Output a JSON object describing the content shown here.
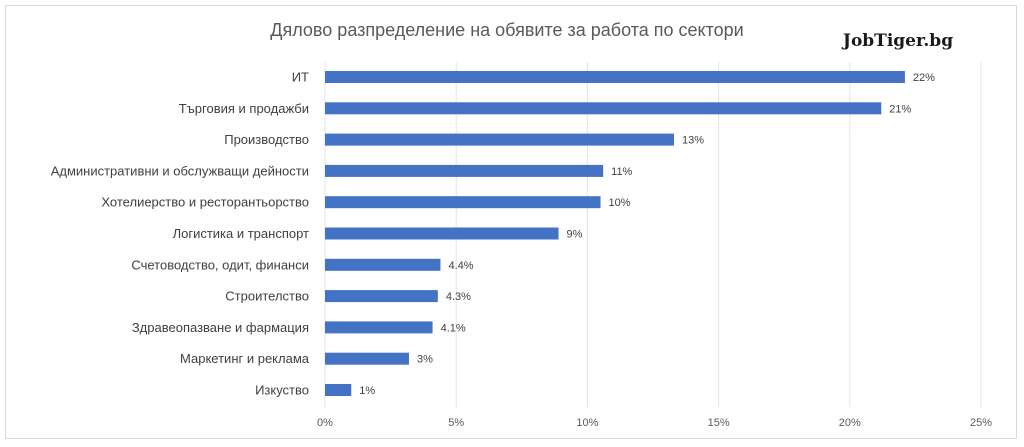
{
  "brand": "JobTiger.bg",
  "chart_data": {
    "type": "bar",
    "orientation": "horizontal",
    "title": "Дялово разпределение на обявите за работа по сектори",
    "categories": [
      "ИТ",
      "Търговия и продажби",
      "Производство",
      "Административни и обслужващи дейности",
      "Хотелиерство и ресторантьорство",
      "Логистика и транспорт",
      "Счетоводство, одит, финанси",
      "Строителство",
      "Здравеопазване и фармация",
      "Маркетинг и реклама",
      "Изкуство"
    ],
    "values": [
      22,
      21,
      13,
      11,
      10,
      9,
      4.4,
      4.3,
      4.1,
      3,
      1
    ],
    "bar_values": [
      22.1,
      21.2,
      13.3,
      10.6,
      10.5,
      8.9,
      4.4,
      4.3,
      4.1,
      3.2,
      1.0
    ],
    "data_labels": [
      "22%",
      "21%",
      "13%",
      "11%",
      "10%",
      "9%",
      "4.4%",
      "4.3%",
      "4.1%",
      "3%",
      "1%"
    ],
    "xlim": [
      0,
      25
    ],
    "x_ticks": [
      0,
      5,
      10,
      15,
      20,
      25
    ],
    "x_tick_labels": [
      "0%",
      "5%",
      "10%",
      "15%",
      "20%",
      "25%"
    ],
    "grid": true,
    "legend": "none",
    "bar_color": "#4472c4"
  }
}
